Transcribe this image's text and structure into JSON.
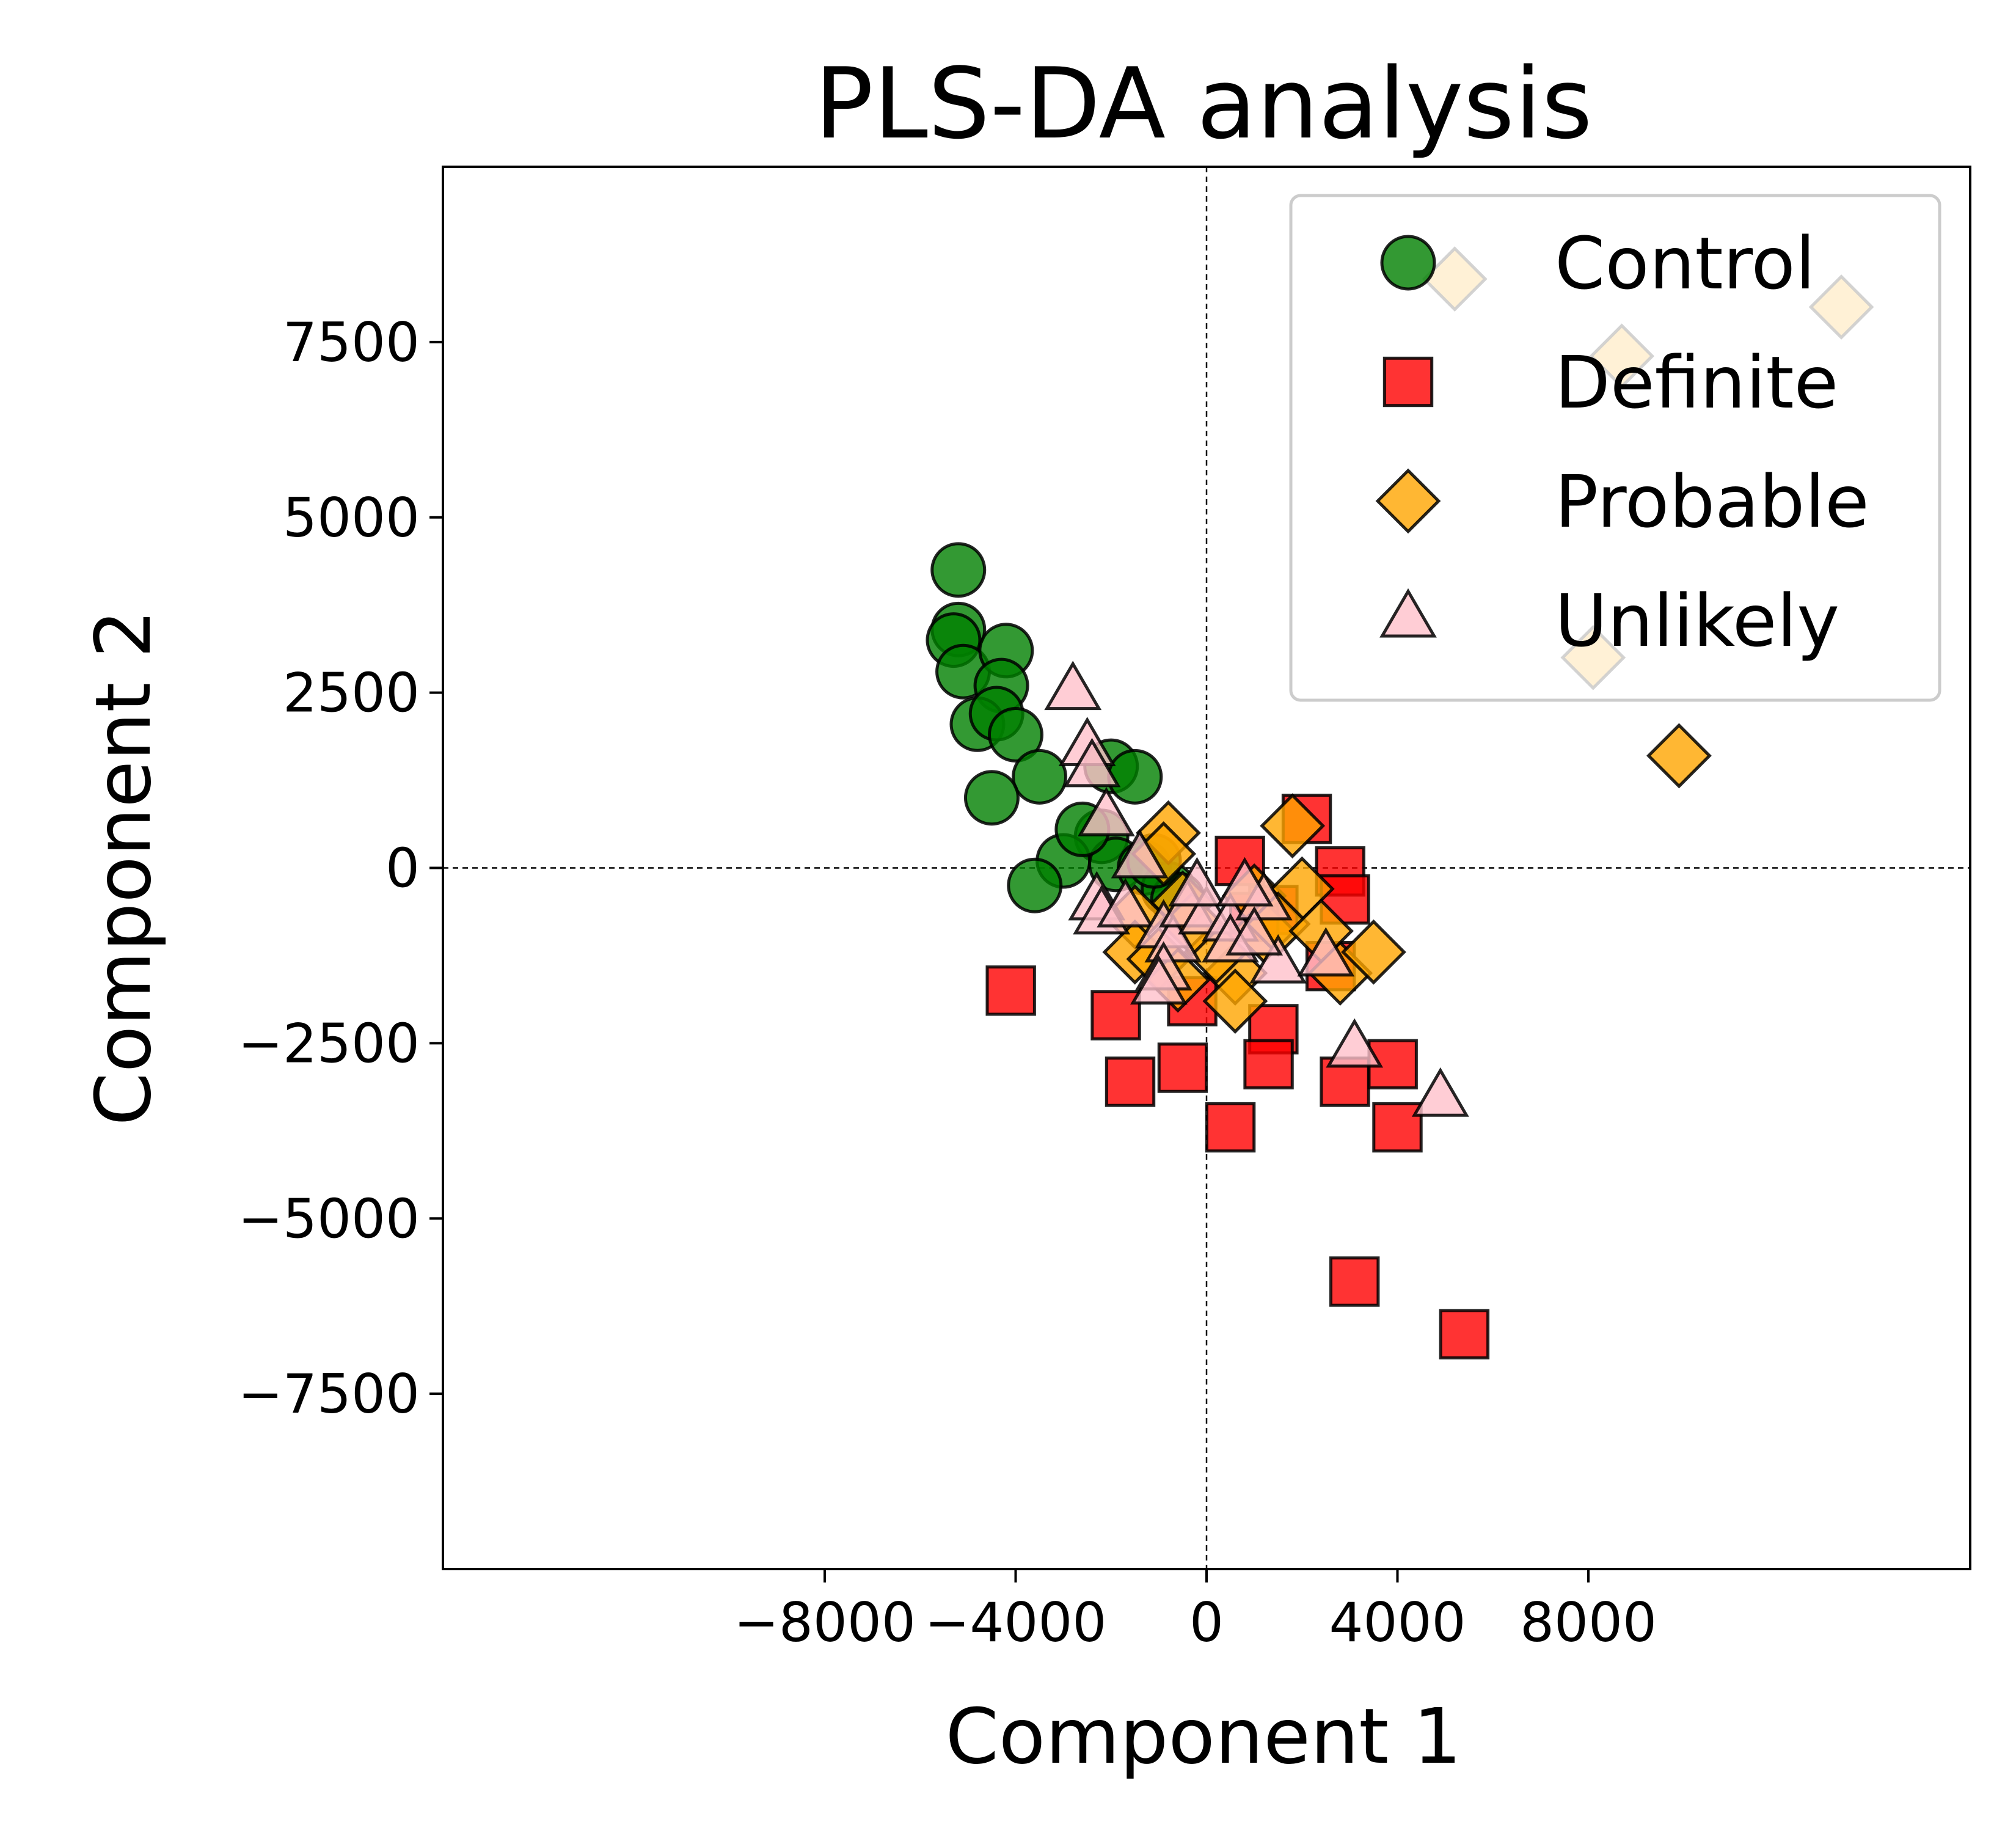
{
  "chart_data": {
    "type": "scatter",
    "title": "PLS-DA analysis",
    "xlabel": "Component 1",
    "ylabel": "Component 2",
    "xlim": [
      -16000,
      16000
    ],
    "ylim": [
      -10000,
      10000
    ],
    "xticks": [
      -8000,
      -4000,
      0,
      4000,
      8000
    ],
    "yticks": [
      -7500,
      -5000,
      -2500,
      0,
      2500,
      5000,
      7500
    ],
    "xtick_labels": [
      "−8000",
      "−4000",
      "0",
      "4000",
      "8000"
    ],
    "ytick_labels": [
      "−7500",
      "−5000",
      "−2500",
      "0",
      "2500",
      "5000",
      "7500"
    ],
    "reference_lines": {
      "x": 0,
      "y": 0,
      "style": "dashed"
    },
    "grid": false,
    "legend_position": "top-right",
    "series": [
      {
        "name": "Control",
        "marker": "circle",
        "color": "#008000",
        "points": [
          [
            -5200,
            4250
          ],
          [
            -5200,
            3400
          ],
          [
            -5300,
            3250
          ],
          [
            -5100,
            2800
          ],
          [
            -4200,
            3100
          ],
          [
            -4300,
            2600
          ],
          [
            -4800,
            2050
          ],
          [
            -4400,
            2200
          ],
          [
            -4000,
            1900
          ],
          [
            -3500,
            1300
          ],
          [
            -4500,
            1000
          ],
          [
            -2000,
            1450
          ],
          [
            -1500,
            1300
          ],
          [
            -2200,
            450
          ],
          [
            -3000,
            100
          ],
          [
            -3600,
            -250
          ],
          [
            -1900,
            50
          ],
          [
            -1300,
            0
          ],
          [
            -800,
            -300
          ],
          [
            -600,
            -450
          ],
          [
            -2600,
            550
          ],
          [
            -1100,
            100
          ]
        ]
      },
      {
        "name": "Definite",
        "marker": "square",
        "color": "#ff0000",
        "points": [
          [
            -4100,
            -1750
          ],
          [
            -1900,
            -2100
          ],
          [
            -1600,
            -3050
          ],
          [
            -500,
            -2850
          ],
          [
            -300,
            -1900
          ],
          [
            700,
            100
          ],
          [
            1400,
            -600
          ],
          [
            1400,
            -2300
          ],
          [
            1300,
            -2800
          ],
          [
            2100,
            700
          ],
          [
            2800,
            -50
          ],
          [
            2900,
            -450
          ],
          [
            2900,
            -3050
          ],
          [
            3900,
            -2800
          ],
          [
            4000,
            -3700
          ],
          [
            500,
            -3700
          ],
          [
            3100,
            -5900
          ],
          [
            5400,
            -6650
          ],
          [
            2600,
            -1400
          ],
          [
            1000,
            -700
          ]
        ]
      },
      {
        "name": "Probable",
        "marker": "diamond",
        "color": "#ffa500",
        "points": [
          [
            5200,
            8400
          ],
          [
            8700,
            7300
          ],
          [
            13300,
            8000
          ],
          [
            8100,
            3000
          ],
          [
            9900,
            1600
          ],
          [
            1800,
            600
          ],
          [
            -800,
            500
          ],
          [
            -900,
            200
          ],
          [
            -500,
            -500
          ],
          [
            -1500,
            -700
          ],
          [
            -1500,
            -1200
          ],
          [
            -1000,
            -1300
          ],
          [
            -600,
            -1600
          ],
          [
            600,
            -1500
          ],
          [
            600,
            -1900
          ],
          [
            1000,
            -400
          ],
          [
            1200,
            -900
          ],
          [
            2000,
            -300
          ],
          [
            2800,
            -1500
          ],
          [
            3500,
            -1200
          ],
          [
            1500,
            -800
          ],
          [
            200,
            -1200
          ],
          [
            -300,
            -800
          ],
          [
            2400,
            -900
          ]
        ]
      },
      {
        "name": "Unlikely",
        "marker": "triangle",
        "color": "#ffc0cb",
        "points": [
          [
            -2800,
            2500
          ],
          [
            -2500,
            1700
          ],
          [
            -2400,
            1400
          ],
          [
            -2100,
            700
          ],
          [
            -1400,
            100
          ],
          [
            -2300,
            -500
          ],
          [
            -2200,
            -700
          ],
          [
            -1700,
            -600
          ],
          [
            -900,
            -900
          ],
          [
            -700,
            -1100
          ],
          [
            -900,
            -1500
          ],
          [
            -1000,
            -1700
          ],
          [
            -400,
            -600
          ],
          [
            0,
            -700
          ],
          [
            500,
            -800
          ],
          [
            500,
            -1100
          ],
          [
            1200,
            -500
          ],
          [
            1500,
            -1400
          ],
          [
            2500,
            -1300
          ],
          [
            3100,
            -2600
          ],
          [
            4900,
            -3300
          ],
          [
            1000,
            -1000
          ],
          [
            -200,
            -300
          ],
          [
            800,
            -300
          ]
        ]
      }
    ]
  }
}
